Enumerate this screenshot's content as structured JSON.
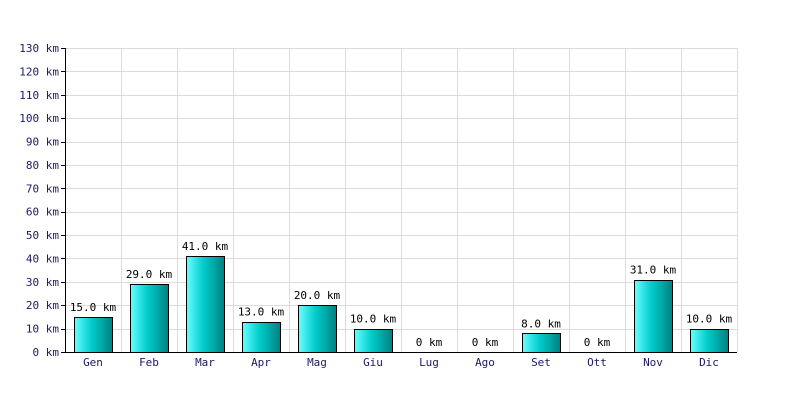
{
  "chart_data": {
    "type": "bar",
    "categories": [
      "Gen",
      "Feb",
      "Mar",
      "Apr",
      "Mag",
      "Giu",
      "Lug",
      "Ago",
      "Set",
      "Ott",
      "Nov",
      "Dic"
    ],
    "values": [
      15,
      29,
      41,
      13,
      20,
      10,
      0,
      0,
      8,
      0,
      31,
      10
    ],
    "value_labels": [
      "15.0 km",
      "29.0 km",
      "41.0 km",
      "13.0 km",
      "20.0 km",
      "10.0 km",
      "0 km",
      "0 km",
      "8.0 km",
      "0 km",
      "31.0 km",
      "10.0 km"
    ],
    "y_ticks": [
      0,
      10,
      20,
      30,
      40,
      50,
      60,
      70,
      80,
      90,
      100,
      110,
      120,
      130
    ],
    "y_tick_labels": [
      "0 km",
      "10 km",
      "20 km",
      "30 km",
      "40 km",
      "50 km",
      "60 km",
      "70 km",
      "80 km",
      "90 km",
      "100 km",
      "110 km",
      "120 km",
      "130 km"
    ],
    "ylim": [
      0,
      130
    ],
    "title": "",
    "xlabel": "",
    "ylabel": "",
    "grid": true,
    "colors": {
      "bar_light": "#66ffff",
      "bar_mid": "#00cccc",
      "bar_dark": "#008080",
      "grid": "#dcdcdc",
      "tick_text": "#1a1a66"
    }
  }
}
